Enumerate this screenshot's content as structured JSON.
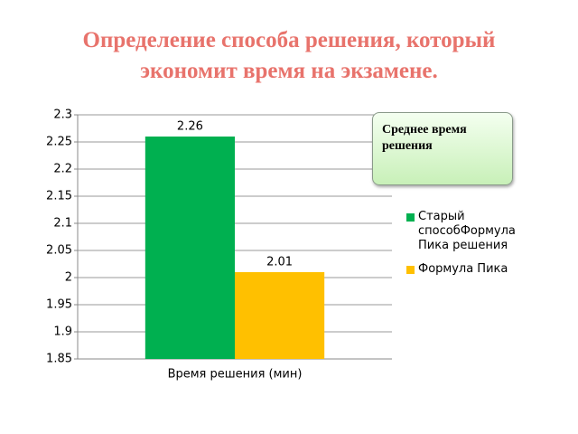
{
  "chart_data": {
    "type": "bar",
    "title": "Определение способа решения, который экономит время на экзамене.",
    "annotation": "Среднее время решения",
    "categories": [
      "Время решения (мин)"
    ],
    "series": [
      {
        "name": "Старый способФормула Пика решения",
        "color": "#00b050",
        "values": [
          2.26
        ]
      },
      {
        "name": "Формула Пика",
        "color": "#ffc000",
        "values": [
          2.01
        ]
      }
    ],
    "ylim": [
      1.85,
      2.3
    ],
    "yticks": [
      1.85,
      1.9,
      1.95,
      2,
      2.05,
      2.1,
      2.15,
      2.2,
      2.25,
      2.3
    ],
    "grid": true,
    "legend": "right"
  }
}
